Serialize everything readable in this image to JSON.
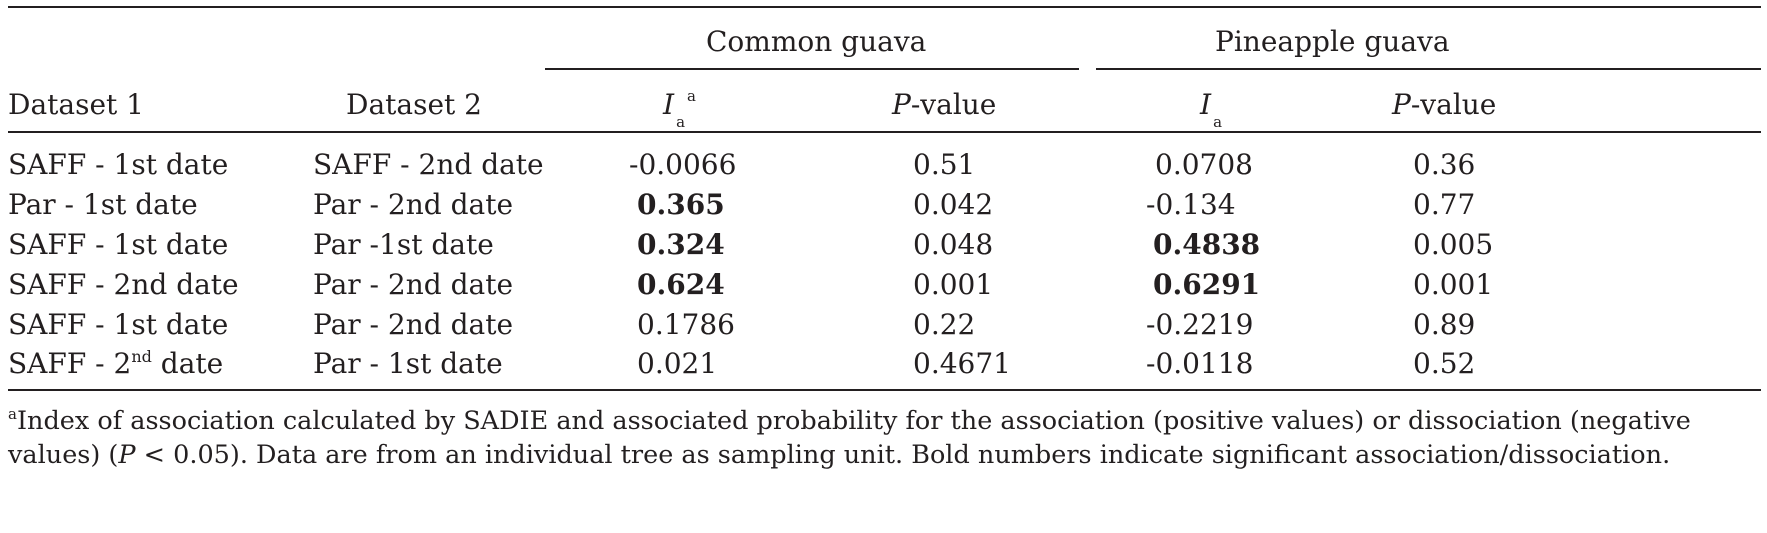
{
  "groups": {
    "common": "Common guava",
    "pineapple": "Pineapple guava"
  },
  "headers": {
    "dataset1": "Dataset 1",
    "dataset2": "Dataset 2",
    "ia_letter": "I",
    "ia_sub": "a",
    "ia_sup": "a",
    "p_letter": "P",
    "p_suffix": "-value"
  },
  "rows": [
    {
      "d1": "SAFF - 1st date",
      "d2": "SAFF - 2nd date",
      "cg_ia": "-0.0066",
      "cg_p": "0.51",
      "pg_ia": "0.0708",
      "pg_p": "0.36"
    },
    {
      "d1": "Par - 1st date",
      "d2": "Par - 2nd date",
      "cg_ia": "0.365",
      "cg_p": "0.042",
      "pg_ia": "-0.134",
      "pg_p": "0.77"
    },
    {
      "d1": "SAFF - 1st date",
      "d2": "Par -1st date",
      "cg_ia": "0.324",
      "cg_p": "0.048",
      "pg_ia": "0.4838",
      "pg_p": "0.005"
    },
    {
      "d1": "SAFF - 2nd date",
      "d2": "Par - 2nd date",
      "cg_ia": "0.624",
      "cg_p": "0.001",
      "pg_ia": "0.6291",
      "pg_p": "0.001"
    },
    {
      "d1": "SAFF - 1st date",
      "d2": "Par - 2nd date",
      "cg_ia": "0.1786",
      "cg_p": "0.22",
      "pg_ia": "-0.2219",
      "pg_p": "0.89"
    },
    {
      "d1_prefix": "SAFF - 2",
      "d1_sup": "nd",
      "d1_suffix": " date",
      "d2": "Par - 1st date",
      "cg_ia": "0.021",
      "cg_p": "0.4671",
      "pg_ia": "-0.0118",
      "pg_p": "0.52"
    }
  ],
  "footnote": {
    "marker": "a",
    "text_1": "Index of association calculated by SADIE and associated probability for the association (positive values) or dissociation (negative values) (",
    "p_letter": "P",
    "text_2": " < 0.05). Data are from an individual tree as sampling unit. Bold numbers indicate significant association/dissociation."
  }
}
